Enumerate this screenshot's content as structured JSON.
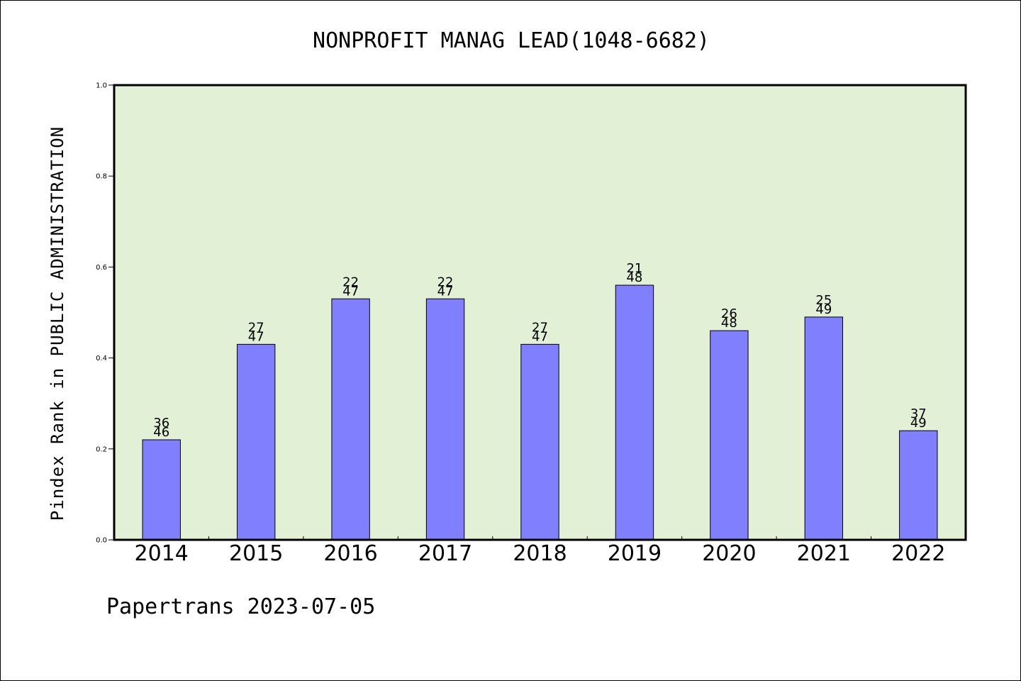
{
  "chart_data": {
    "type": "bar",
    "title": "NONPROFIT MANAG LEAD(1048-6682)",
    "xlabel": "",
    "ylabel": "Pindex Rank in PUBLIC ADMINISTRATION",
    "ylim": [
      0.0,
      1.0
    ],
    "yticks": [
      "0.0",
      "0.2",
      "0.4",
      "0.6",
      "0.8",
      "1.0"
    ],
    "ytick_values": [
      0.0,
      0.2,
      0.4,
      0.6,
      0.8,
      1.0
    ],
    "categories": [
      "2014",
      "2015",
      "2016",
      "2017",
      "2018",
      "2019",
      "2020",
      "2021",
      "2022"
    ],
    "values": [
      0.22,
      0.43,
      0.53,
      0.53,
      0.43,
      0.56,
      0.46,
      0.49,
      0.24
    ],
    "bar_labels_top": [
      "36",
      "27",
      "22",
      "22",
      "27",
      "21",
      "26",
      "25",
      "37"
    ],
    "bar_labels_bottom": [
      "46",
      "47",
      "47",
      "47",
      "47",
      "48",
      "48",
      "49",
      "49"
    ],
    "grid": false,
    "colors": {
      "bar": "#8080ff",
      "plot_background": "#e2f0d6"
    }
  },
  "footer": "Papertrans 2023-07-05"
}
